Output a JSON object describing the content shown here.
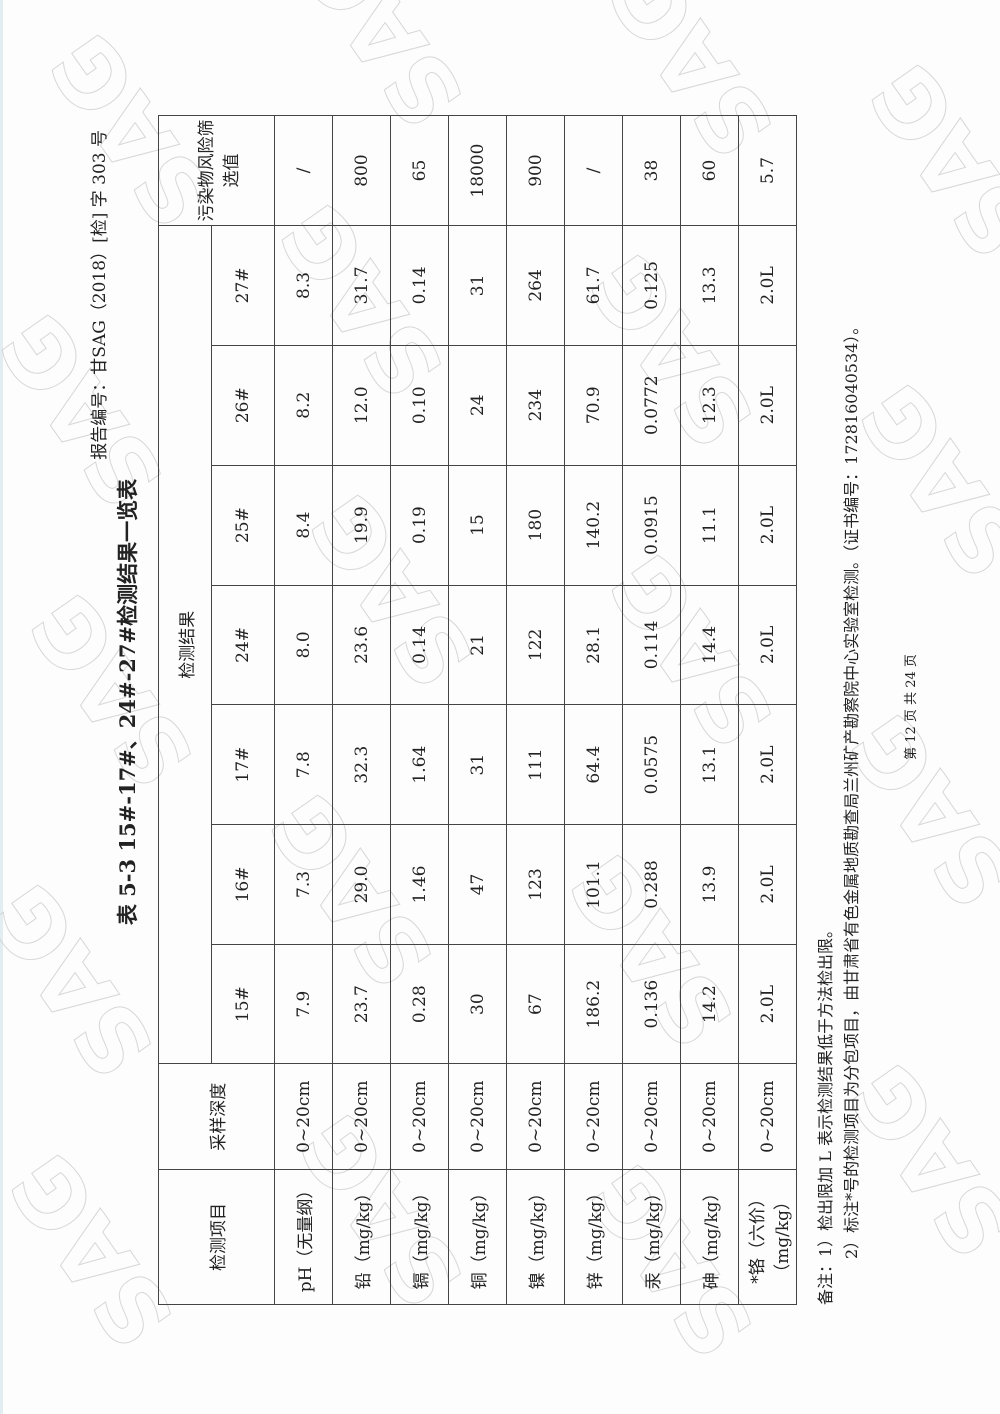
{
  "header": {
    "report_no": "报告编号：甘SAG（2018）[检] 字 303 号"
  },
  "title": "表 5-3   15#-17#、24#-27#检测结果一览表",
  "table": {
    "col_item": "检测项目",
    "col_depth": "采样深度",
    "col_results": "检测结果",
    "col_limit": "污染物风险筛选值",
    "samples": [
      "15#",
      "16#",
      "17#",
      "24#",
      "25#",
      "26#",
      "27#"
    ],
    "rows": [
      {
        "item": "pH（无量纲）",
        "depth": "0~20cm",
        "values": [
          "7.9",
          "7.3",
          "7.8",
          "8.0",
          "8.4",
          "8.2",
          "8.3"
        ],
        "limit": "/"
      },
      {
        "item": "铅（mg/kg）",
        "depth": "0~20cm",
        "values": [
          "23.7",
          "29.0",
          "32.3",
          "23.6",
          "19.9",
          "12.0",
          "31.7"
        ],
        "limit": "800"
      },
      {
        "item": "镉（mg/kg）",
        "depth": "0~20cm",
        "values": [
          "0.28",
          "1.46",
          "1.64",
          "0.14",
          "0.19",
          "0.10",
          "0.14"
        ],
        "limit": "65"
      },
      {
        "item": "铜（mg/kg）",
        "depth": "0~20cm",
        "values": [
          "30",
          "47",
          "31",
          "21",
          "15",
          "24",
          "31"
        ],
        "limit": "18000"
      },
      {
        "item": "镍（mg/kg）",
        "depth": "0~20cm",
        "values": [
          "67",
          "123",
          "111",
          "122",
          "180",
          "234",
          "264"
        ],
        "limit": "900"
      },
      {
        "item": "锌（mg/kg）",
        "depth": "0~20cm",
        "values": [
          "186.2",
          "101.1",
          "64.4",
          "28.1",
          "140.2",
          "70.9",
          "61.7"
        ],
        "limit": "/"
      },
      {
        "item": "汞（mg/kg）",
        "depth": "0~20cm",
        "values": [
          "0.136",
          "0.288",
          "0.0575",
          "0.114",
          "0.0915",
          "0.0772",
          "0.125"
        ],
        "limit": "38"
      },
      {
        "item": "砷（mg/kg）",
        "depth": "0~20cm",
        "values": [
          "14.2",
          "13.9",
          "13.1",
          "14.4",
          "11.1",
          "12.3",
          "13.3"
        ],
        "limit": "60"
      },
      {
        "item": "*铬（六价）（mg/kg）",
        "depth": "0~20cm",
        "values": [
          "2.0L",
          "2.0L",
          "2.0L",
          "2.0L",
          "2.0L",
          "2.0L",
          "2.0L"
        ],
        "limit": "5.7"
      }
    ]
  },
  "notes": [
    "备注：1）检出限加 L 表示检测结果低于方法检出限。",
    "2）标注*号的检测项目为分包项目，由甘肃省有色金属地质勘查局兰州矿产勘察院中心实验室检测。（证书编号：172816040534）。"
  ],
  "footer": "第 12 页 共 24 页",
  "watermark": "SAG"
}
